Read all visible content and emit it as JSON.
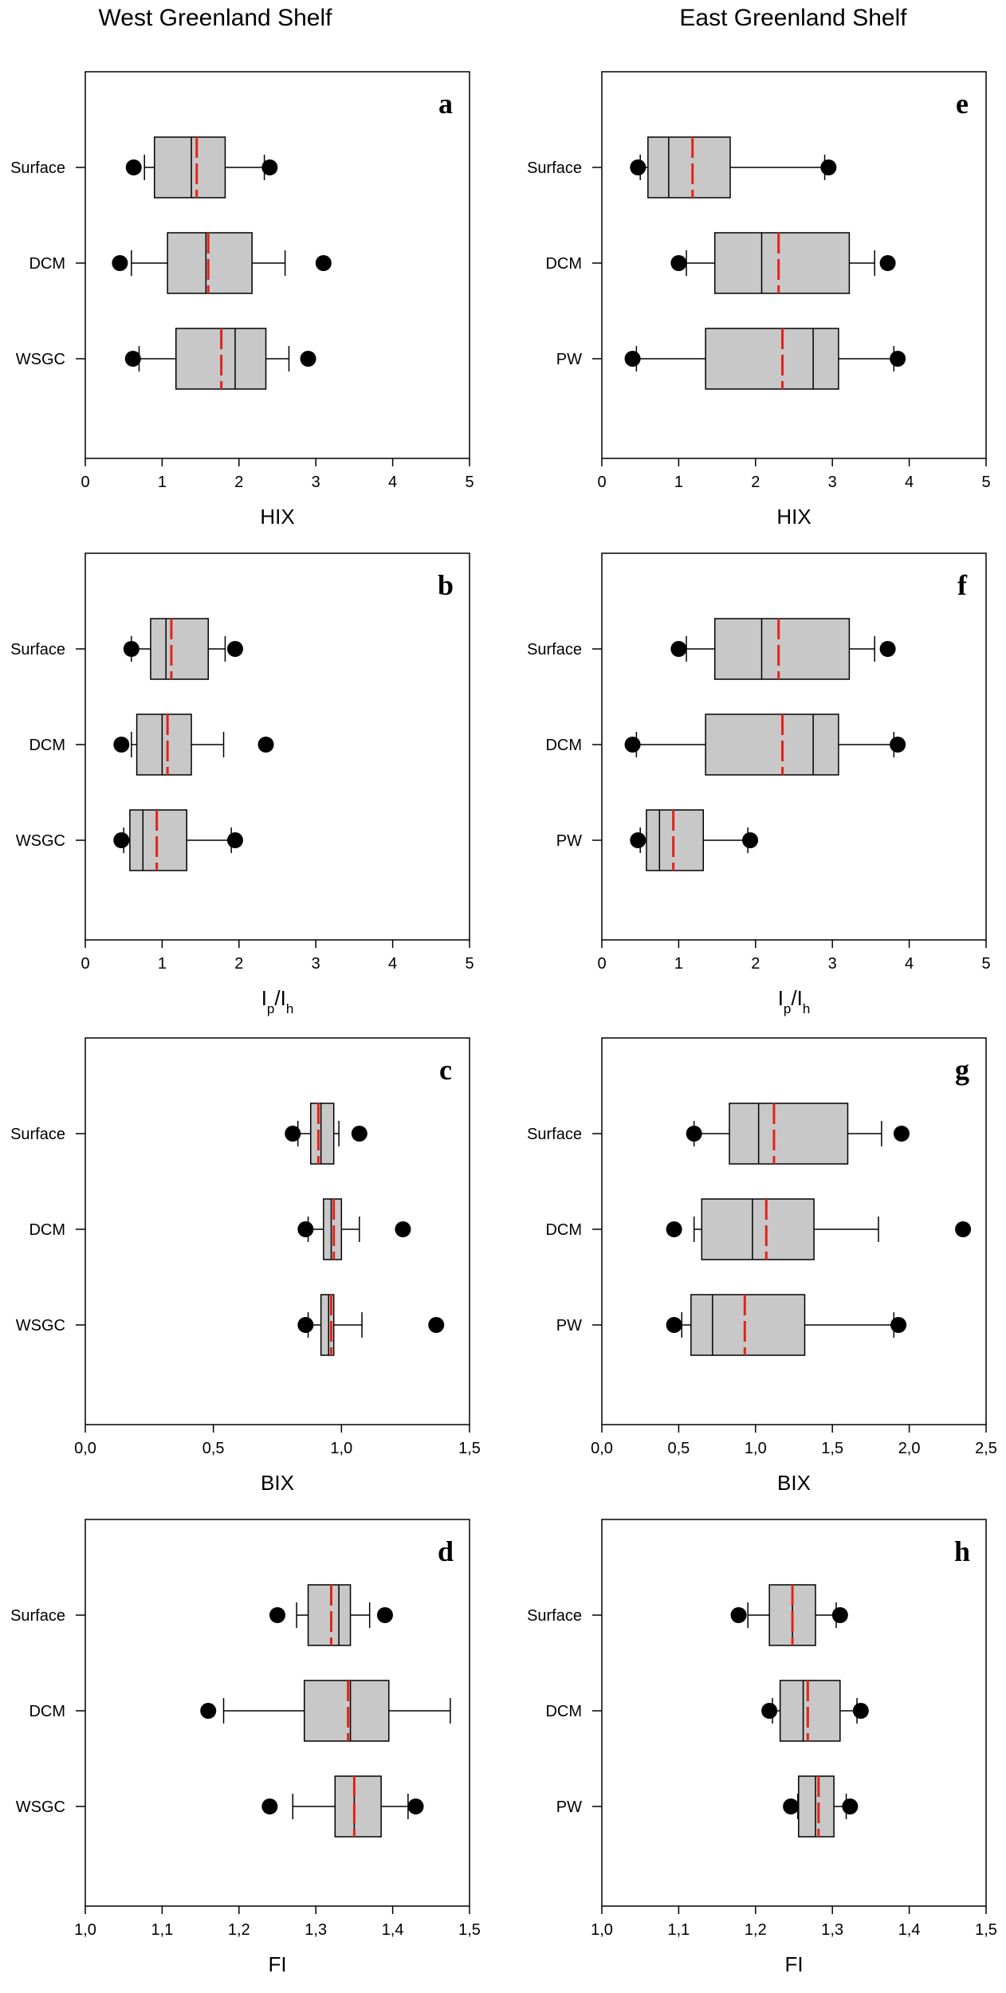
{
  "figure": {
    "left_column_title": "West Greenland Shelf",
    "right_column_title": "East Greenland Shelf"
  },
  "colors": {
    "box_fill": "#c8c8c8",
    "mean_line": "#e0241a",
    "ink": "#000000"
  },
  "chart_data": [
    {
      "type": "boxplot",
      "panel": "a",
      "region": "West Greenland Shelf",
      "xlabel": "HIX",
      "xlim": [
        0,
        5
      ],
      "ticks": [
        0,
        1,
        2,
        3,
        4,
        5
      ],
      "tick_labels": [
        "0",
        "1",
        "2",
        "3",
        "4",
        "5"
      ],
      "groups": [
        {
          "name": "Surface",
          "min": 0.77,
          "q1": 0.9,
          "median": 1.38,
          "mean": 1.45,
          "q3": 1.82,
          "max": 2.33,
          "outliers": [
            0.63,
            2.4
          ]
        },
        {
          "name": "DCM",
          "min": 0.6,
          "q1": 1.07,
          "median": 1.57,
          "mean": 1.6,
          "q3": 2.17,
          "max": 2.6,
          "outliers": [
            0.45,
            3.1
          ]
        },
        {
          "name": "WSGC",
          "min": 0.7,
          "q1": 1.18,
          "median": 1.95,
          "mean": 1.77,
          "q3": 2.35,
          "max": 2.65,
          "outliers": [
            0.62,
            2.9
          ]
        }
      ]
    },
    {
      "type": "boxplot",
      "panel": "b",
      "region": "West Greenland Shelf",
      "xlabel": "Ip/Ih",
      "xlabel_main": "I",
      "xlabel_sub1": "p",
      "xlabel_sep": "/I",
      "xlabel_sub2": "h",
      "xlim": [
        0,
        5
      ],
      "ticks": [
        0,
        1,
        2,
        3,
        4,
        5
      ],
      "tick_labels": [
        "0",
        "1",
        "2",
        "3",
        "4",
        "5"
      ],
      "groups": [
        {
          "name": "Surface",
          "min": 0.6,
          "q1": 0.85,
          "median": 1.05,
          "mean": 1.12,
          "q3": 1.6,
          "max": 1.82,
          "outliers": [
            0.6,
            1.95
          ]
        },
        {
          "name": "DCM",
          "min": 0.6,
          "q1": 0.67,
          "median": 1.0,
          "mean": 1.07,
          "q3": 1.38,
          "max": 1.8,
          "outliers": [
            0.47,
            2.35
          ]
        },
        {
          "name": "WSGC",
          "min": 0.5,
          "q1": 0.58,
          "median": 0.75,
          "mean": 0.93,
          "q3": 1.32,
          "max": 1.9,
          "outliers": [
            0.47,
            1.95
          ]
        }
      ]
    },
    {
      "type": "boxplot",
      "panel": "c",
      "region": "West Greenland Shelf",
      "xlabel": "BIX",
      "xlim": [
        0,
        1.5
      ],
      "ticks": [
        0,
        0.5,
        1.0,
        1.5
      ],
      "tick_labels": [
        "0,0",
        "0,5",
        "1,0",
        "1,5"
      ],
      "groups": [
        {
          "name": "Surface",
          "min": 0.83,
          "q1": 0.88,
          "median": 0.92,
          "mean": 0.91,
          "q3": 0.97,
          "max": 0.99,
          "outliers": [
            0.81,
            1.07
          ]
        },
        {
          "name": "DCM",
          "min": 0.87,
          "q1": 0.93,
          "median": 0.96,
          "mean": 0.97,
          "q3": 1.0,
          "max": 1.07,
          "outliers": [
            0.86,
            1.24
          ]
        },
        {
          "name": "WSGC",
          "min": 0.87,
          "q1": 0.92,
          "median": 0.95,
          "mean": 0.96,
          "q3": 0.97,
          "max": 1.08,
          "outliers": [
            0.86,
            1.37
          ]
        }
      ]
    },
    {
      "type": "boxplot",
      "panel": "d",
      "region": "West Greenland Shelf",
      "xlabel": "FI",
      "xlim": [
        1.0,
        1.5
      ],
      "ticks": [
        1.0,
        1.1,
        1.2,
        1.3,
        1.4,
        1.5
      ],
      "tick_labels": [
        "1,0",
        "1,1",
        "1,2",
        "1,3",
        "1,4",
        "1,5"
      ],
      "groups": [
        {
          "name": "Surface",
          "min": 1.275,
          "q1": 1.29,
          "median": 1.33,
          "mean": 1.32,
          "q3": 1.345,
          "max": 1.37,
          "outliers": [
            1.25,
            1.39
          ]
        },
        {
          "name": "DCM",
          "min": 1.18,
          "q1": 1.285,
          "median": 1.345,
          "mean": 1.342,
          "q3": 1.395,
          "max": 1.475,
          "outliers": [
            1.16
          ]
        },
        {
          "name": "WSGC",
          "min": 1.27,
          "q1": 1.325,
          "median": 1.35,
          "mean": 1.35,
          "q3": 1.385,
          "max": 1.42,
          "outliers": [
            1.24,
            1.43
          ]
        }
      ]
    },
    {
      "type": "boxplot",
      "panel": "e",
      "region": "East Greenland Shelf",
      "xlabel": "HIX",
      "xlim": [
        0,
        5
      ],
      "ticks": [
        0,
        1,
        2,
        3,
        4,
        5
      ],
      "tick_labels": [
        "0",
        "1",
        "2",
        "3",
        "4",
        "5"
      ],
      "groups": [
        {
          "name": "Surface",
          "min": 0.5,
          "q1": 0.6,
          "median": 0.87,
          "mean": 1.18,
          "q3": 1.67,
          "max": 2.9,
          "outliers": [
            0.47,
            2.95
          ]
        },
        {
          "name": "DCM",
          "min": 1.1,
          "q1": 1.47,
          "median": 2.08,
          "mean": 2.3,
          "q3": 3.22,
          "max": 3.55,
          "outliers": [
            1.0,
            3.72
          ]
        },
        {
          "name": "PW",
          "min": 0.45,
          "q1": 1.35,
          "median": 2.75,
          "mean": 2.35,
          "q3": 3.08,
          "max": 3.8,
          "outliers": [
            0.4,
            3.85
          ]
        }
      ]
    },
    {
      "type": "boxplot",
      "panel": "f",
      "region": "East Greenland Shelf",
      "xlabel": "Ip/Ih",
      "xlabel_main": "I",
      "xlabel_sub1": "p",
      "xlabel_sep": "/I",
      "xlabel_sub2": "h",
      "xlim": [
        0,
        5
      ],
      "ticks": [
        0,
        1,
        2,
        3,
        4,
        5
      ],
      "tick_labels": [
        "0",
        "1",
        "2",
        "3",
        "4",
        "5"
      ],
      "groups": [
        {
          "name": "Surface",
          "min": 1.1,
          "q1": 1.47,
          "median": 2.08,
          "mean": 2.3,
          "q3": 3.22,
          "max": 3.55,
          "outliers": [
            1.0,
            3.72
          ]
        },
        {
          "name": "DCM",
          "min": 0.45,
          "q1": 1.35,
          "median": 2.75,
          "mean": 2.35,
          "q3": 3.08,
          "max": 3.8,
          "outliers": [
            0.4,
            3.85
          ]
        },
        {
          "name": "PW",
          "min": 0.5,
          "q1": 0.58,
          "median": 0.75,
          "mean": 0.93,
          "q3": 1.32,
          "max": 1.9,
          "outliers": [
            0.47,
            1.93
          ]
        }
      ]
    },
    {
      "type": "boxplot",
      "panel": "g",
      "region": "East Greenland Shelf",
      "xlabel": "BIX",
      "xlim": [
        0,
        2.5
      ],
      "ticks": [
        0,
        0.5,
        1.0,
        1.5,
        2.0,
        2.5
      ],
      "tick_labels": [
        "0,0",
        "0,5",
        "1,0",
        "1,5",
        "2,0",
        "2,5"
      ],
      "groups": [
        {
          "name": "Surface",
          "min": 0.6,
          "q1": 0.83,
          "median": 1.02,
          "mean": 1.12,
          "q3": 1.6,
          "max": 1.82,
          "outliers": [
            0.6,
            1.95
          ]
        },
        {
          "name": "DCM",
          "min": 0.6,
          "q1": 0.65,
          "median": 0.98,
          "mean": 1.07,
          "q3": 1.38,
          "max": 1.8,
          "outliers": [
            0.47,
            2.35
          ]
        },
        {
          "name": "PW",
          "min": 0.52,
          "q1": 0.58,
          "median": 0.72,
          "mean": 0.93,
          "q3": 1.32,
          "max": 1.9,
          "outliers": [
            0.47,
            1.93
          ]
        }
      ]
    },
    {
      "type": "boxplot",
      "panel": "h",
      "region": "East Greenland Shelf",
      "xlabel": "FI",
      "xlim": [
        1.0,
        1.5
      ],
      "ticks": [
        1.0,
        1.1,
        1.2,
        1.3,
        1.4,
        1.5
      ],
      "tick_labels": [
        "1,0",
        "1,1",
        "1,2",
        "1,3",
        "1,4",
        "1,5"
      ],
      "groups": [
        {
          "name": "Surface",
          "min": 1.19,
          "q1": 1.218,
          "median": 1.248,
          "mean": 1.248,
          "q3": 1.278,
          "max": 1.305,
          "outliers": [
            1.178,
            1.31
          ]
        },
        {
          "name": "DCM",
          "min": 1.222,
          "q1": 1.232,
          "median": 1.262,
          "mean": 1.268,
          "q3": 1.31,
          "max": 1.332,
          "outliers": [
            1.218,
            1.337
          ]
        },
        {
          "name": "PW",
          "min": 1.255,
          "q1": 1.256,
          "median": 1.278,
          "mean": 1.282,
          "q3": 1.302,
          "max": 1.318,
          "outliers": [
            1.246,
            1.323
          ]
        }
      ]
    }
  ]
}
